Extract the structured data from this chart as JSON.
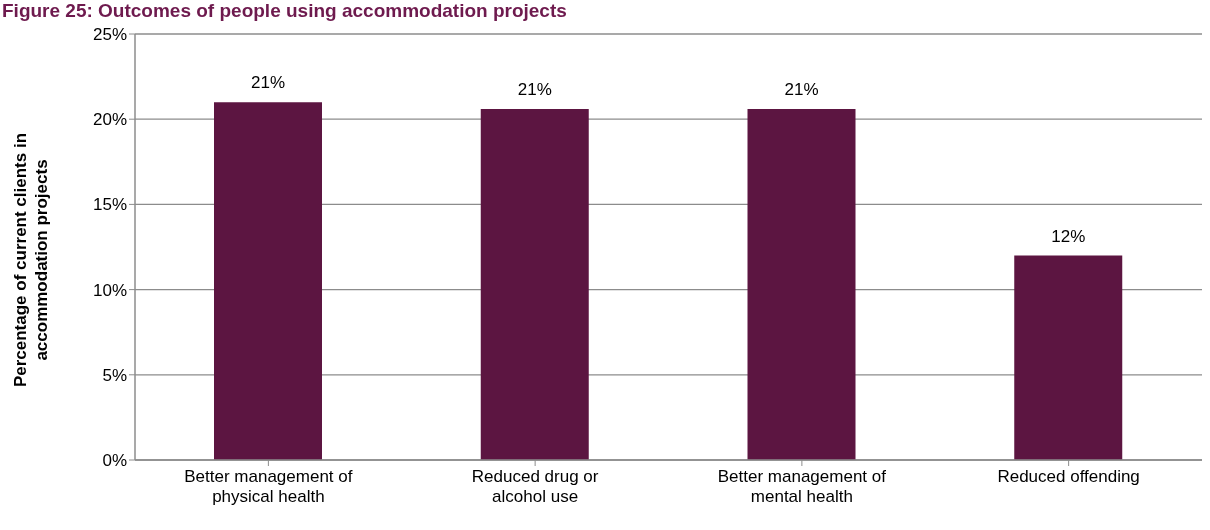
{
  "chart_data": {
    "type": "bar",
    "title": "Figure 25: Outcomes of people using accommodation projects",
    "ylabel": "Percentage of current clients in accommodation projects",
    "categories": [
      "Better management of physical health",
      "Reduced drug or alcohol use",
      "Better management of mental health",
      "Reduced offending"
    ],
    "values": [
      21,
      20.6,
      20.6,
      12
    ],
    "value_labels": [
      "21%",
      "21%",
      "21%",
      "12%"
    ],
    "color": "#5c1541",
    "ylim": [
      0,
      25
    ],
    "yticks": [
      {
        "value": 0,
        "label": "0%"
      },
      {
        "value": 5,
        "label": "5%"
      },
      {
        "value": 10,
        "label": "10%"
      },
      {
        "value": 15,
        "label": "15%"
      },
      {
        "value": 20,
        "label": "20%"
      },
      {
        "value": 25,
        "label": "25%"
      }
    ],
    "grid": "y"
  }
}
